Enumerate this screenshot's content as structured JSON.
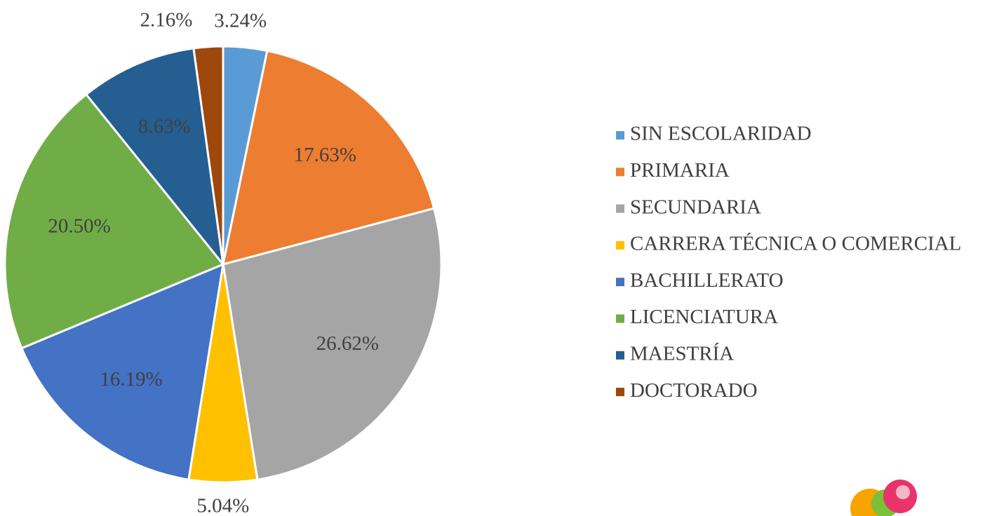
{
  "chart_data": {
    "type": "pie",
    "categories": [
      "SIN ESCOLARIDAD",
      "PRIMARIA",
      "SECUNDARIA",
      "CARRERA TÉCNICA O COMERCIAL",
      "BACHILLERATO",
      "LICENCIATURA",
      "MAESTRÍA",
      "DOCTORADO"
    ],
    "values": [
      3.24,
      17.63,
      26.62,
      5.04,
      16.19,
      20.5,
      8.63,
      2.16
    ],
    "value_labels": [
      "3.24%",
      "17.63%",
      "26.62%",
      "5.04%",
      "16.19%",
      "20.50%",
      "8.63%",
      "2.16%"
    ],
    "colors": [
      "#5b9bd5",
      "#ed7d31",
      "#a5a5a5",
      "#ffc000",
      "#4472c4",
      "#70ad47",
      "#255e91",
      "#9e480e"
    ],
    "legend": "right"
  }
}
